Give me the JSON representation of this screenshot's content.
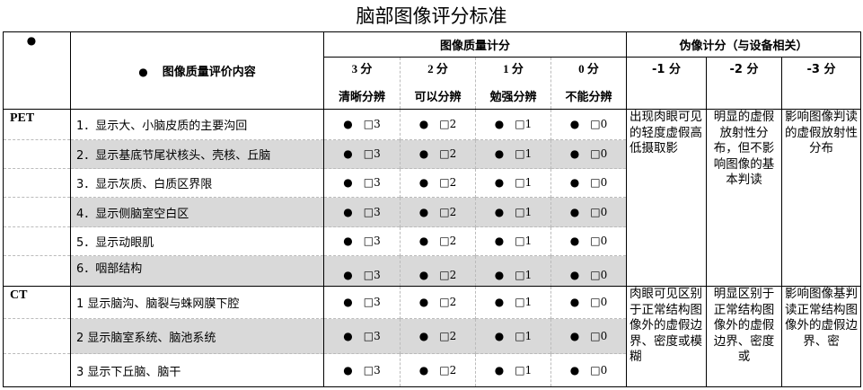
{
  "title": "脑部图像评分标准",
  "header": {
    "corner_bullet": "●",
    "content_label": "图像质量评价内容",
    "quality_group": "图像质量计分",
    "artifact_group": "伪像计分（与设备相关）",
    "score_columns": [
      {
        "score": "3 分",
        "desc": "清晰分辨"
      },
      {
        "score": "2 分",
        "desc": "可以分辨"
      },
      {
        "score": "1 分",
        "desc": "勉强分辨"
      },
      {
        "score": "0 分",
        "desc": "不能分辨"
      }
    ],
    "artifact_columns": [
      "-1 分",
      "-2 分",
      "-3 分"
    ]
  },
  "checkbox_labels": [
    "□3",
    "□2",
    "□1",
    "□0"
  ],
  "groups": [
    {
      "modality": "PET",
      "items": [
        "1．显示大、小脑皮质的主要沟回",
        "2．显示基底节尾状核头、壳核、丘脑",
        "3．显示灰质、白质区界限",
        "4．显示侧脑室空白区",
        "5．显示动眼肌",
        "6．咽部结构"
      ],
      "artifacts": [
        "出现肉眼可见的轻度虚假高低摄取影",
        "明显的虚假放射性分布，但不影响图像的基本判读",
        "影响图像判读的虚假放射性分布"
      ]
    },
    {
      "modality": "CT",
      "items": [
        "1 显示脑沟、脑裂与蛛网膜下腔",
        "2 显示脑室系统、脑池系统",
        "3 显示下丘脑、脑干"
      ],
      "artifacts": [
        "肉眼可见区别于正常结构图像外的虚假边界、密度或模糊",
        "明显区别于正常结构图像外的虚假边界、密度或",
        "影响图像基判读正常结构图像外的虚假边界、密"
      ]
    }
  ]
}
